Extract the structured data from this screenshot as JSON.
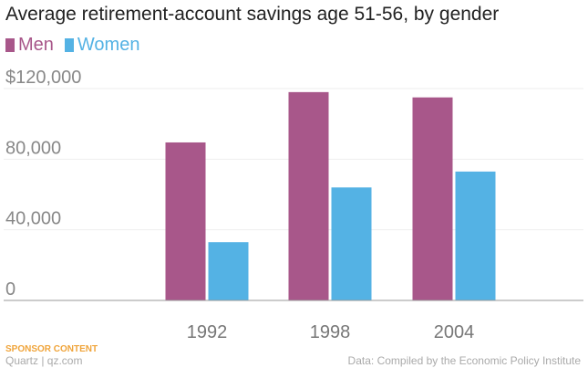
{
  "title": "Average retirement-account savings age 51-56, by gender",
  "colors": {
    "men": "#a8578a",
    "women": "#54b2e4",
    "grid": "#eeeeee",
    "axis": "#999999"
  },
  "chart_data": {
    "type": "bar",
    "title": "Average retirement-account savings age 51-56, by gender",
    "categories": [
      "1992",
      "1998",
      "2004"
    ],
    "series": [
      {
        "name": "Men",
        "values": [
          89500,
          118000,
          115000
        ]
      },
      {
        "name": "Women",
        "values": [
          33000,
          64000,
          73000
        ]
      }
    ],
    "yticks": [
      "$120,000",
      "80,000",
      "40,000",
      "0"
    ],
    "ytick_values": [
      120000,
      80000,
      40000,
      0
    ],
    "ylim": [
      0,
      120000
    ],
    "xlabel": "",
    "ylabel": "",
    "grid": true,
    "legend_position": "top-left"
  },
  "footer": {
    "sponsor": "SPONSOR CONTENT",
    "brand": "Quartz | qz.com",
    "source": "Data: Compiled by the Economic Policy Institute"
  }
}
